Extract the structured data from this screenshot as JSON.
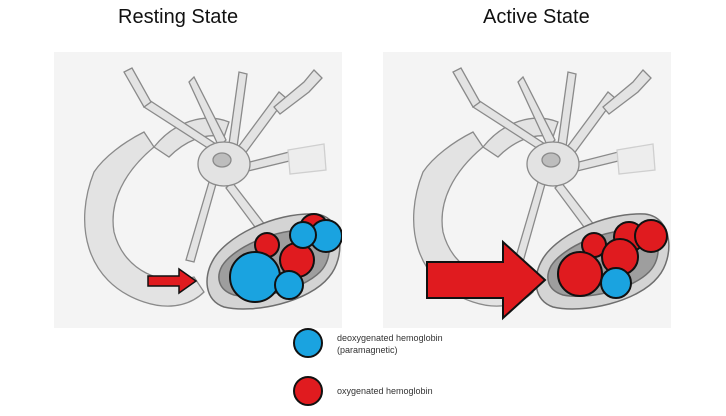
{
  "titles": {
    "resting": "Resting State",
    "active": "Active State"
  },
  "legend": {
    "deoxy_line1": "deoxygenated hemoglobin",
    "deoxy_line2": "(paramagnetic)",
    "oxy": "oxygenated hemoglobin"
  },
  "colors": {
    "deoxy": "#1aa3e0",
    "oxy": "#e01b1f",
    "outline": "#111111",
    "tissue": "#e6e6e6"
  }
}
